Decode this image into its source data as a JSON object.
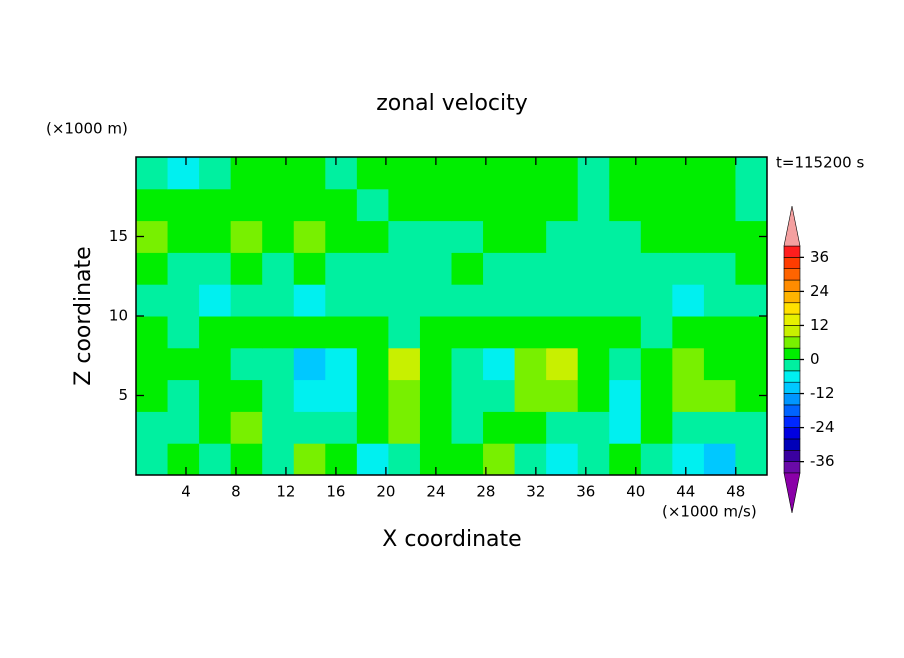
{
  "chart_data": {
    "type": "contour",
    "title": "zonal velocity",
    "xlabel": "X coordinate",
    "ylabel": "Z coordinate",
    "y_units": "(×1000 m)",
    "x_units": "(×1000 m/s)",
    "annotation": "t=115200 s",
    "xlim": [
      0,
      50.5
    ],
    "ylim": [
      0,
      20
    ],
    "xticks": [
      4,
      8,
      12,
      16,
      20,
      24,
      28,
      32,
      36,
      40,
      44,
      48
    ],
    "yticks": [
      5,
      10,
      15
    ],
    "levels": [
      -40,
      -36,
      -32,
      -28,
      -24,
      -20,
      -16,
      -12,
      -8,
      -4,
      0,
      4,
      8,
      12,
      16,
      20,
      24,
      28,
      32,
      36,
      40
    ],
    "colors": [
      "#8a00a8",
      "#6a0aa8",
      "#3a00a0",
      "#0000b8",
      "#0000e0",
      "#0028ff",
      "#0064ff",
      "#0096ff",
      "#00c8ff",
      "#00f0f0",
      "#00f0a0",
      "#00ee00",
      "#78f000",
      "#c8f000",
      "#e6f000",
      "#ffe000",
      "#ffb400",
      "#ff8c00",
      "#ff6400",
      "#ff3c00",
      "#ff1e1e",
      "#f4a0a0"
    ],
    "cticks": [
      -36,
      -24,
      -12,
      0,
      12,
      24,
      36
    ],
    "z": [
      [
        -2,
        2,
        -2,
        2,
        -2,
        6,
        2,
        -6,
        -2,
        2,
        2,
        6,
        -2,
        -6,
        -2,
        2,
        -2,
        -6,
        -10,
        -2
      ],
      [
        -2,
        -2,
        2,
        6,
        -2,
        -2,
        -2,
        2,
        6,
        2,
        -2,
        2,
        2,
        -2,
        -2,
        -6,
        2,
        -2,
        -2,
        -2
      ],
      [
        2,
        -2,
        2,
        2,
        -2,
        -6,
        -6,
        2,
        6,
        2,
        -2,
        -2,
        6,
        6,
        2,
        -6,
        2,
        6,
        6,
        2
      ],
      [
        2,
        2,
        2,
        -2,
        -2,
        -10,
        -6,
        2,
        10,
        2,
        -2,
        -6,
        6,
        10,
        2,
        -2,
        2,
        6,
        2,
        2
      ],
      [
        2,
        -2,
        2,
        2,
        2,
        2,
        2,
        2,
        -2,
        2,
        2,
        2,
        2,
        2,
        2,
        2,
        -2,
        2,
        2,
        2
      ],
      [
        -2,
        -2,
        -6,
        -2,
        -2,
        -6,
        -2,
        -2,
        -2,
        -2,
        -2,
        -2,
        -2,
        -2,
        -2,
        -2,
        -2,
        -6,
        -2,
        -2
      ],
      [
        2,
        -2,
        -2,
        2,
        -2,
        2,
        -2,
        -2,
        -2,
        -2,
        2,
        -2,
        -2,
        -2,
        -2,
        -2,
        -2,
        -2,
        -2,
        2
      ],
      [
        6,
        2,
        2,
        6,
        2,
        6,
        2,
        2,
        -2,
        -2,
        -2,
        2,
        2,
        -2,
        -2,
        -2,
        2,
        2,
        2,
        2
      ],
      [
        2,
        2,
        2,
        2,
        2,
        2,
        2,
        -2,
        2,
        2,
        2,
        2,
        2,
        2,
        -2,
        2,
        2,
        2,
        2,
        -2
      ],
      [
        -2,
        -6,
        -2,
        2,
        2,
        2,
        -2,
        2,
        2,
        2,
        2,
        2,
        2,
        2,
        -2,
        2,
        2,
        2,
        2,
        -2
      ]
    ]
  }
}
